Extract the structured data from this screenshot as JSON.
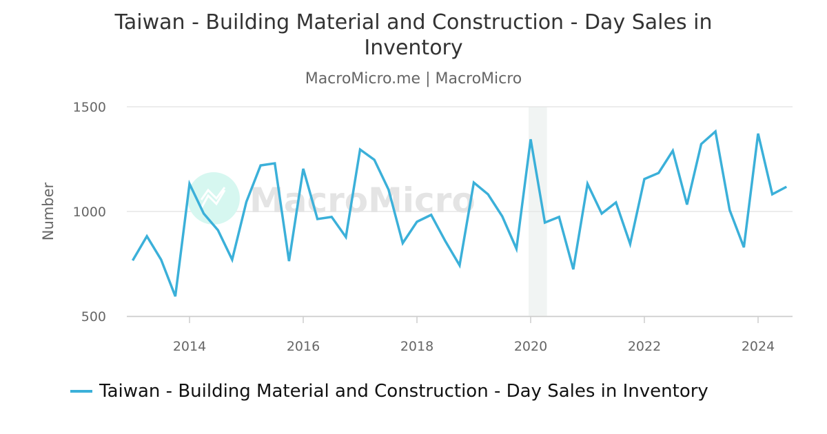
{
  "title": "Taiwan - Building Material and Construction - Day Sales in Inventory",
  "subtitle": "MacroMicro.me | MacroMicro",
  "watermark": "MacroMicro",
  "colors": {
    "series": "#3bb0d9",
    "grid": "#e6e6e6",
    "recession_band": "#f1f4f3"
  },
  "chart_data": {
    "type": "line",
    "title": "Taiwan - Building Material and Construction - Day Sales in Inventory",
    "ylabel": "Number",
    "xlabel": "",
    "ylim": [
      500,
      1500
    ],
    "yticks": [
      500,
      1000,
      1500
    ],
    "xticks": [
      2014,
      2016,
      2018,
      2020,
      2022,
      2024
    ],
    "grid": true,
    "legend_position": "bottom",
    "shaded_range": [
      "2020-Q1",
      "2020-Q2"
    ],
    "series": [
      {
        "name": "Taiwan - Building Material and Construction - Day Sales in Inventory",
        "x": [
          "2013-Q1",
          "2013-Q2",
          "2013-Q3",
          "2013-Q4",
          "2014-Q1",
          "2014-Q2",
          "2014-Q3",
          "2014-Q4",
          "2015-Q1",
          "2015-Q2",
          "2015-Q3",
          "2015-Q4",
          "2016-Q1",
          "2016-Q2",
          "2016-Q3",
          "2016-Q4",
          "2017-Q1",
          "2017-Q2",
          "2017-Q3",
          "2017-Q4",
          "2018-Q1",
          "2018-Q2",
          "2018-Q3",
          "2018-Q4",
          "2019-Q1",
          "2019-Q2",
          "2019-Q3",
          "2019-Q4",
          "2020-Q1",
          "2020-Q2",
          "2020-Q3",
          "2020-Q4",
          "2021-Q1",
          "2021-Q2",
          "2021-Q3",
          "2021-Q4",
          "2022-Q1",
          "2022-Q2",
          "2022-Q3",
          "2022-Q4",
          "2023-Q1",
          "2023-Q2",
          "2023-Q3",
          "2023-Q4",
          "2024-Q1",
          "2024-Q2",
          "2024-Q3"
        ],
        "values": [
          766,
          882,
          770,
          595,
          1132,
          990,
          911,
          770,
          1046,
          1220,
          1230,
          763,
          1204,
          964,
          974,
          878,
          1296,
          1247,
          1105,
          849,
          951,
          984,
          858,
          743,
          1138,
          1082,
          977,
          822,
          1345,
          947,
          974,
          724,
          1132,
          990,
          1043,
          845,
          1155,
          1184,
          1290,
          1033,
          1322,
          1382,
          1007,
          829,
          1372,
          1082,
          1118
        ]
      }
    ]
  }
}
